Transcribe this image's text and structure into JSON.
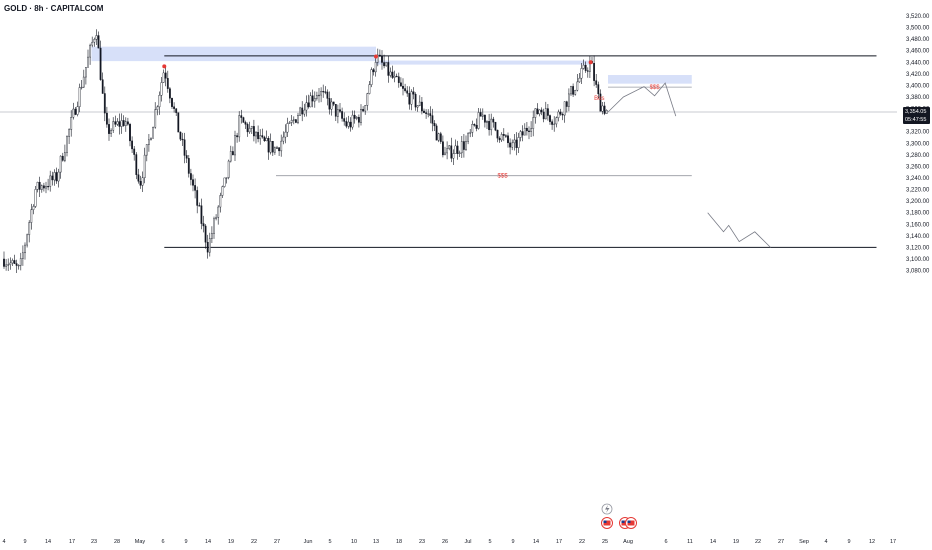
{
  "header": {
    "title": "GOLD · 8h · CAPITALCOM"
  },
  "colors": {
    "candle": "#131722",
    "zone": "#c9d6f7",
    "marker": "#e53935",
    "annotation": "#e53935",
    "line": "#131722",
    "liquidity_line": "#9598a1",
    "path": "#787b86",
    "price_tag_bg": "#131722"
  },
  "icons": {
    "lightning": "lightning-icon",
    "us_flag": "us-flag-icon"
  },
  "chart_data": {
    "type": "candlestick",
    "title": "GOLD · 8h · CAPITALCOM",
    "y_axis": {
      "ylim": [
        3075,
        3525
      ],
      "ticks": [
        "3,520.00",
        "3,500.00",
        "3,480.00",
        "3,460.00",
        "3,440.00",
        "3,420.00",
        "3,400.00",
        "3,380.00",
        "3,360.00",
        "3,340.00",
        "3,320.00",
        "3,300.00",
        "3,280.00",
        "3,260.00",
        "3,240.00",
        "3,220.00",
        "3,200.00",
        "3,180.00",
        "3,160.00",
        "3,140.00",
        "3,120.00",
        "3,100.00",
        "3,080.00"
      ]
    },
    "x_axis": {
      "ticks": [
        "4",
        "9",
        "14",
        "17",
        "23",
        "28",
        "May",
        "6",
        "9",
        "14",
        "19",
        "22",
        "27",
        "Jun",
        "5",
        "10",
        "13",
        "18",
        "23",
        "26",
        "Jul",
        "5",
        "9",
        "14",
        "17",
        "22",
        "25",
        "Aug",
        "6",
        "11",
        "14",
        "19",
        "22",
        "27",
        "Sep",
        "4",
        "9",
        "12",
        "17"
      ]
    },
    "current_price": {
      "value": 3354.05,
      "label": "3,354.05",
      "countdown": "05:47:55"
    },
    "price_path": [
      [
        "Apr 4",
        3100
      ],
      [
        "Apr 7",
        3080
      ],
      [
        "Apr 10",
        3220
      ],
      [
        "Apr 14",
        3240
      ],
      [
        "Apr 17",
        3340
      ],
      [
        "Apr 22",
        3500
      ],
      [
        "Apr 24",
        3320
      ],
      [
        "Apr 28",
        3340
      ],
      [
        "May 1",
        3230
      ],
      [
        "May 6",
        3430
      ],
      [
        "May 9",
        3320
      ],
      [
        "May 12",
        3220
      ],
      [
        "May 15",
        3120
      ],
      [
        "May 19",
        3240
      ],
      [
        "May 22",
        3340
      ],
      [
        "May 27",
        3300
      ],
      [
        "May 30",
        3290
      ],
      [
        "Jun 3",
        3370
      ],
      [
        "Jun 5",
        3390
      ],
      [
        "Jun 9",
        3330
      ],
      [
        "Jun 11",
        3350
      ],
      [
        "Jun 13",
        3450
      ],
      [
        "Jun 18",
        3390
      ],
      [
        "Jun 23",
        3350
      ],
      [
        "Jun 26",
        3280
      ],
      [
        "Jun 30",
        3300
      ],
      [
        "Jul 3",
        3350
      ],
      [
        "Jul 7",
        3310
      ],
      [
        "Jul 9",
        3290
      ],
      [
        "Jul 14",
        3360
      ],
      [
        "Jul 17",
        3340
      ],
      [
        "Jul 22",
        3420
      ],
      [
        "Jul 23",
        3440
      ],
      [
        "Jul 24",
        3370
      ],
      [
        "Jul 25",
        3354
      ]
    ],
    "zones": [
      {
        "from": "Apr 21",
        "to": "Jun 13",
        "low": 3442,
        "high": 3467
      },
      {
        "from": "Jun 13",
        "to": "Jul 23",
        "low": 3436,
        "high": 3443
      },
      {
        "from": "Jul 25",
        "to": "Aug 10",
        "low": 3403,
        "high": 3418
      }
    ],
    "horizontal_lines": [
      {
        "from": "May 6",
        "to": "Sep 14",
        "value": 3451
      },
      {
        "from": "May 6",
        "to": "Sep 14",
        "value": 3120
      },
      {
        "from": "May 30",
        "to": "Aug 10",
        "value": 3244,
        "label": "$$$"
      },
      {
        "from": "Jul 25",
        "to": "Aug 10",
        "value": 3397,
        "label": "$$$"
      }
    ],
    "annotations": [
      {
        "text": "$$$",
        "x": "Jul 7",
        "y": 3244
      },
      {
        "text": "$$$",
        "x": "Aug 3",
        "y": 3397
      },
      {
        "text": "Bos",
        "x": "Jul 24",
        "y": 3378
      }
    ],
    "projected_paths": [
      [
        [
          "Jul 25",
          3354
        ],
        [
          "Jul 28",
          3380
        ],
        [
          "Aug 1",
          3398
        ],
        [
          "Aug 3",
          3382
        ],
        [
          "Aug 5",
          3404
        ],
        [
          "Aug 7",
          3347
        ]
      ],
      [
        [
          "Aug 13",
          3180
        ],
        [
          "Aug 16",
          3147
        ],
        [
          "Aug 17",
          3158
        ],
        [
          "Aug 19",
          3130
        ],
        [
          "Aug 22",
          3147
        ],
        [
          "Aug 25",
          3120
        ]
      ]
    ]
  }
}
